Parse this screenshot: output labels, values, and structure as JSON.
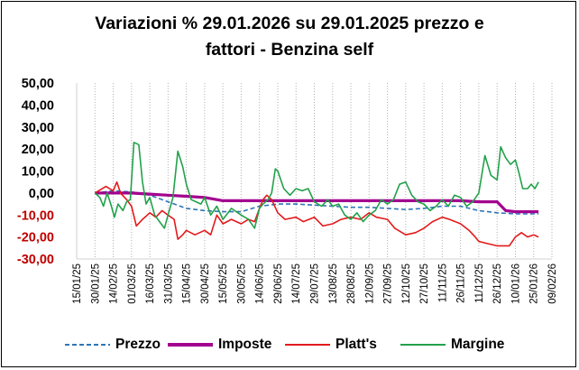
{
  "chart_data": {
    "type": "line",
    "title_lines": [
      "Variazioni % 29.01.2026 su 29.01.2025 prezzo e",
      "fattori - Benzina self"
    ],
    "xlabel": "",
    "ylabel": "",
    "ylim": [
      -30,
      50
    ],
    "yticks": [
      "50,00",
      "40,00",
      "30,00",
      "20,00",
      "10,00",
      "0,00",
      "-10,00",
      "-20,00",
      "-30,00"
    ],
    "ytick_values": [
      50,
      40,
      30,
      20,
      10,
      0,
      -10,
      -20,
      -30
    ],
    "ytick_colors": [
      "#000000",
      "#000000",
      "#000000",
      "#000000",
      "#000000",
      "#000000",
      "#c00000",
      "#c00000",
      "#c00000"
    ],
    "xlim": [
      "15/01/25",
      "09/02/26"
    ],
    "xticks": [
      "15/01/25",
      "30/01/25",
      "14/02/25",
      "01/03/25",
      "16/03/25",
      "31/03/25",
      "15/04/25",
      "30/04/25",
      "15/05/25",
      "30/05/25",
      "14/06/25",
      "29/06/25",
      "14/07/25",
      "29/07/25",
      "13/08/25",
      "28/08/25",
      "12/09/25",
      "27/09/25",
      "12/10/25",
      "27/10/25",
      "11/11/25",
      "26/11/25",
      "11/12/25",
      "26/12/25",
      "10/01/26",
      "25/01/26",
      "09/02/26"
    ],
    "grid": "vertical dotted",
    "legend_position": "bottom",
    "series": [
      {
        "name": "Prezzo",
        "color": "#2e75b6",
        "style": "dashed",
        "points": [
          [
            "30/01/25",
            0
          ],
          [
            "14/02/25",
            1
          ],
          [
            "01/03/25",
            0.5
          ],
          [
            "16/03/25",
            -1
          ],
          [
            "31/03/25",
            -4
          ],
          [
            "15/04/25",
            -7
          ],
          [
            "30/04/25",
            -8
          ],
          [
            "15/05/25",
            -8.5
          ],
          [
            "30/05/25",
            -8.5
          ],
          [
            "14/06/25",
            -6
          ],
          [
            "29/06/25",
            -5
          ],
          [
            "14/07/25",
            -5
          ],
          [
            "29/07/25",
            -5.5
          ],
          [
            "13/08/25",
            -6
          ],
          [
            "28/08/25",
            -6.5
          ],
          [
            "12/09/25",
            -6.5
          ],
          [
            "27/09/25",
            -7
          ],
          [
            "12/10/25",
            -7.5
          ],
          [
            "27/10/25",
            -7
          ],
          [
            "11/11/25",
            -6
          ],
          [
            "26/11/25",
            -6
          ],
          [
            "11/12/25",
            -8
          ],
          [
            "26/12/25",
            -9
          ],
          [
            "10/01/26",
            -9.5
          ],
          [
            "29/01/26",
            -9.5
          ]
        ]
      },
      {
        "name": "Imposte",
        "color": "#a3008f",
        "style": "solid",
        "points": [
          [
            "30/01/25",
            0
          ],
          [
            "14/02/25",
            0
          ],
          [
            "01/03/25",
            0
          ],
          [
            "16/03/25",
            -0.5
          ],
          [
            "31/03/25",
            -1
          ],
          [
            "15/04/25",
            -1.5
          ],
          [
            "30/04/25",
            -2
          ],
          [
            "15/05/25",
            -3.5
          ],
          [
            "30/05/25",
            -3.5
          ],
          [
            "14/06/25",
            -3.5
          ],
          [
            "29/06/25",
            -3.5
          ],
          [
            "14/07/25",
            -3.5
          ],
          [
            "29/07/25",
            -3.5
          ],
          [
            "13/08/25",
            -3.5
          ],
          [
            "28/08/25",
            -3.5
          ],
          [
            "12/09/25",
            -3.5
          ],
          [
            "27/09/25",
            -3.5
          ],
          [
            "12/10/25",
            -3.5
          ],
          [
            "27/10/25",
            -3.5
          ],
          [
            "11/11/25",
            -3.5
          ],
          [
            "26/11/25",
            -3.5
          ],
          [
            "11/12/25",
            -4
          ],
          [
            "26/12/25",
            -4
          ],
          [
            "02/01/26",
            -8
          ],
          [
            "10/01/26",
            -8.5
          ],
          [
            "29/01/26",
            -8.5
          ]
        ]
      },
      {
        "name": "Platt's",
        "color": "#e31a1c",
        "style": "solid",
        "points": [
          [
            "30/01/25",
            0
          ],
          [
            "08/02/25",
            3
          ],
          [
            "14/02/25",
            1
          ],
          [
            "17/02/25",
            5
          ],
          [
            "20/02/25",
            0
          ],
          [
            "25/02/25",
            -3
          ],
          [
            "01/03/25",
            -6
          ],
          [
            "05/03/25",
            -15
          ],
          [
            "10/03/25",
            -12
          ],
          [
            "16/03/25",
            -9
          ],
          [
            "21/03/25",
            -11
          ],
          [
            "26/03/25",
            -8
          ],
          [
            "31/03/25",
            -10
          ],
          [
            "05/04/25",
            -12
          ],
          [
            "08/04/25",
            -21
          ],
          [
            "12/04/25",
            -19
          ],
          [
            "15/04/25",
            -17
          ],
          [
            "22/04/25",
            -19
          ],
          [
            "30/04/25",
            -17
          ],
          [
            "05/05/25",
            -19
          ],
          [
            "10/05/25",
            -10
          ],
          [
            "15/05/25",
            -14
          ],
          [
            "22/05/25",
            -12
          ],
          [
            "30/05/25",
            -14
          ],
          [
            "05/06/25",
            -12
          ],
          [
            "10/06/25",
            -13
          ],
          [
            "14/06/25",
            -7
          ],
          [
            "17/06/25",
            -3
          ],
          [
            "20/06/25",
            -1
          ],
          [
            "24/06/25",
            -3
          ],
          [
            "29/06/25",
            -9
          ],
          [
            "05/07/25",
            -12
          ],
          [
            "14/07/25",
            -11
          ],
          [
            "20/07/25",
            -13
          ],
          [
            "29/07/25",
            -11
          ],
          [
            "05/08/25",
            -15
          ],
          [
            "13/08/25",
            -14
          ],
          [
            "20/08/25",
            -12
          ],
          [
            "28/08/25",
            -11
          ],
          [
            "05/09/25",
            -12
          ],
          [
            "12/09/25",
            -9
          ],
          [
            "18/09/25",
            -11
          ],
          [
            "27/09/25",
            -12
          ],
          [
            "03/10/25",
            -16
          ],
          [
            "12/10/25",
            -19
          ],
          [
            "20/10/25",
            -18
          ],
          [
            "27/10/25",
            -16
          ],
          [
            "03/11/25",
            -13
          ],
          [
            "11/11/25",
            -11
          ],
          [
            "17/11/25",
            -12
          ],
          [
            "26/11/25",
            -14
          ],
          [
            "03/12/25",
            -17
          ],
          [
            "08/12/25",
            -20
          ],
          [
            "11/12/25",
            -22
          ],
          [
            "18/12/25",
            -23
          ],
          [
            "26/12/25",
            -24
          ],
          [
            "02/01/26",
            -24
          ],
          [
            "05/01/26",
            -24
          ],
          [
            "10/01/26",
            -20
          ],
          [
            "15/01/26",
            -18
          ],
          [
            "20/01/26",
            -20
          ],
          [
            "25/01/26",
            -19
          ],
          [
            "29/01/26",
            -20
          ]
        ]
      },
      {
        "name": "Margine",
        "color": "#22a14a",
        "style": "solid",
        "points": [
          [
            "30/01/25",
            0
          ],
          [
            "03/02/25",
            -2
          ],
          [
            "06/02/25",
            -6
          ],
          [
            "09/02/25",
            0
          ],
          [
            "12/02/25",
            -5
          ],
          [
            "15/02/25",
            -11
          ],
          [
            "18/02/25",
            -5
          ],
          [
            "22/02/25",
            -8
          ],
          [
            "25/02/25",
            -4
          ],
          [
            "28/02/25",
            -3
          ],
          [
            "03/03/25",
            23
          ],
          [
            "07/03/25",
            22
          ],
          [
            "10/03/25",
            5
          ],
          [
            "13/03/25",
            -5
          ],
          [
            "16/03/25",
            -2
          ],
          [
            "20/03/25",
            -10
          ],
          [
            "24/03/25",
            -13
          ],
          [
            "28/03/25",
            -16
          ],
          [
            "31/03/25",
            -10
          ],
          [
            "04/04/25",
            -2
          ],
          [
            "08/04/25",
            19
          ],
          [
            "12/04/25",
            12
          ],
          [
            "15/04/25",
            4
          ],
          [
            "19/04/25",
            -3
          ],
          [
            "23/04/25",
            -4
          ],
          [
            "27/04/25",
            -5
          ],
          [
            "30/04/25",
            -2
          ],
          [
            "05/05/25",
            -10
          ],
          [
            "10/05/25",
            -6
          ],
          [
            "15/05/25",
            -12
          ],
          [
            "22/05/25",
            -7
          ],
          [
            "30/05/25",
            -10
          ],
          [
            "05/06/25",
            -12
          ],
          [
            "10/06/25",
            -16
          ],
          [
            "14/06/25",
            -7
          ],
          [
            "17/06/25",
            -5
          ],
          [
            "21/06/25",
            -3
          ],
          [
            "24/06/25",
            0
          ],
          [
            "27/06/25",
            11
          ],
          [
            "29/06/25",
            10
          ],
          [
            "04/07/25",
            2
          ],
          [
            "09/07/25",
            -1
          ],
          [
            "14/07/25",
            2
          ],
          [
            "19/07/25",
            1
          ],
          [
            "24/07/25",
            2
          ],
          [
            "29/07/25",
            -4
          ],
          [
            "04/08/25",
            -6
          ],
          [
            "09/08/25",
            -3
          ],
          [
            "13/08/25",
            -6
          ],
          [
            "18/08/25",
            -5
          ],
          [
            "23/08/25",
            -10
          ],
          [
            "28/08/25",
            -12
          ],
          [
            "02/09/25",
            -9
          ],
          [
            "07/09/25",
            -13
          ],
          [
            "12/09/25",
            -10
          ],
          [
            "17/09/25",
            -8
          ],
          [
            "22/09/25",
            -3
          ],
          [
            "27/09/25",
            -5
          ],
          [
            "02/10/25",
            -3
          ],
          [
            "07/10/25",
            4
          ],
          [
            "12/10/25",
            5
          ],
          [
            "17/10/25",
            -1
          ],
          [
            "22/10/25",
            -4
          ],
          [
            "27/10/25",
            -5
          ],
          [
            "01/11/25",
            -8
          ],
          [
            "06/11/25",
            -6
          ],
          [
            "11/11/25",
            -3
          ],
          [
            "16/11/25",
            -6
          ],
          [
            "21/11/25",
            -1
          ],
          [
            "26/11/25",
            -2
          ],
          [
            "01/12/25",
            -6
          ],
          [
            "06/12/25",
            -4
          ],
          [
            "11/12/25",
            0
          ],
          [
            "16/12/25",
            17
          ],
          [
            "21/12/25",
            8
          ],
          [
            "26/12/25",
            6
          ],
          [
            "29/12/25",
            21
          ],
          [
            "02/01/26",
            16
          ],
          [
            "06/01/26",
            13
          ],
          [
            "10/01/26",
            15
          ],
          [
            "13/01/26",
            9
          ],
          [
            "16/01/26",
            2
          ],
          [
            "20/01/26",
            2
          ],
          [
            "23/01/26",
            4
          ],
          [
            "26/01/26",
            2
          ],
          [
            "29/01/26",
            5
          ]
        ]
      }
    ]
  }
}
